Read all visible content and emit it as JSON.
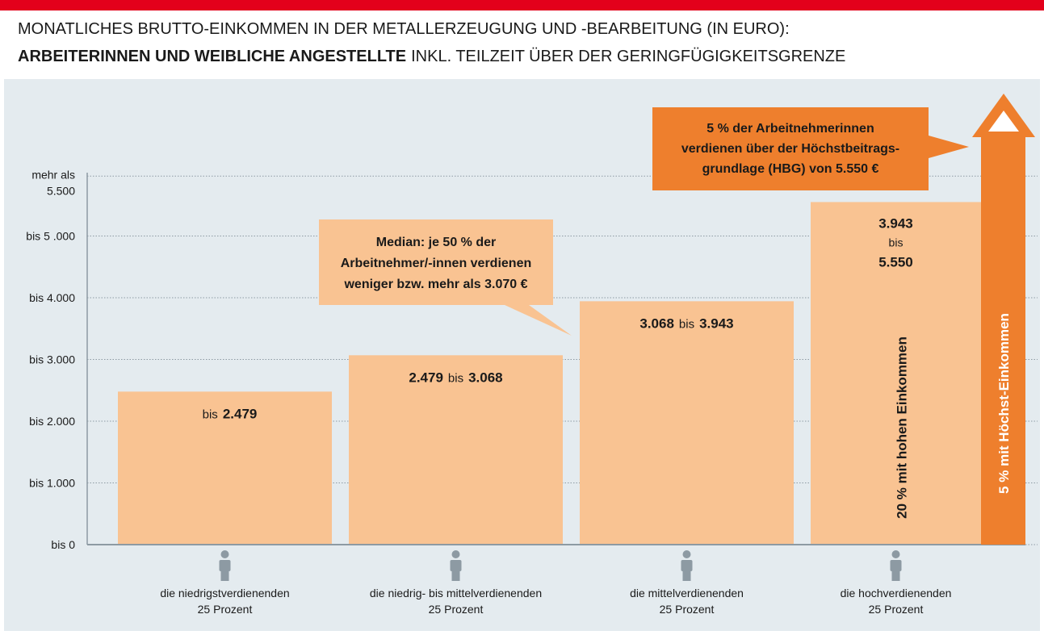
{
  "chart_data": {
    "type": "bar",
    "title": "MONATLICHES BRUTTO-EINKOMMEN IN DER METALLERZEUGUNG UND -BEARBEITUNG (IN EURO):",
    "subtitle_bold": "ARBEITERINNEN UND WEIBLICHE ANGESTELLTE",
    "subtitle": "INKL. TEILZEIT ÜBER DER GERINGFÜGIGKEITSGRENZE",
    "categories": [
      [
        "die niedrigstverdienenden",
        "25 Prozent"
      ],
      [
        "die niedrig- bis mittelverdienenden",
        "25 Prozent"
      ],
      [
        "die mittelverdienenden",
        "25 Prozent"
      ],
      [
        "die hochverdienenden",
        "25 Prozent"
      ]
    ],
    "values": [
      2479,
      3068,
      3943,
      5550
    ],
    "range_word": "bis",
    "value_labels": [
      {
        "to": "2.479"
      },
      {
        "from": "2.479",
        "to": "3.068"
      },
      {
        "from": "3.068",
        "to": "3.943"
      },
      {
        "from": "3.943",
        "to": "5.550"
      }
    ],
    "color": "#f9c392",
    "accent_color": "#ee7f2d",
    "group_label": "20 % mit hohen Einkommen",
    "top_label": "5 % mit Höchst-Einkommen",
    "median_note": [
      "Median: je 50 % der",
      "Arbeitnehmer/-innen verdienen",
      "weniger bzw. mehr als 3.070 €"
    ],
    "hbg_note": [
      "5 % der Arbeitnehmerinnen",
      "verdienen über der Höchstbeitrags-",
      "grundlage (HBG) von 5.550 €"
    ],
    "ylim": [
      0,
      5500
    ],
    "yticks": [
      {
        "value": 0,
        "label": "bis 0"
      },
      {
        "value": 1000,
        "label": "bis 1.000"
      },
      {
        "value": 2000,
        "label": "bis 2.000"
      },
      {
        "value": 3000,
        "label": "bis 3.000"
      },
      {
        "value": 4000,
        "label": "bis 4.000"
      },
      {
        "value": 5000,
        "label": "bis 5 .000"
      },
      {
        "value": 5500,
        "label": [
          "mehr als",
          "5.500"
        ]
      }
    ],
    "grid": true
  }
}
